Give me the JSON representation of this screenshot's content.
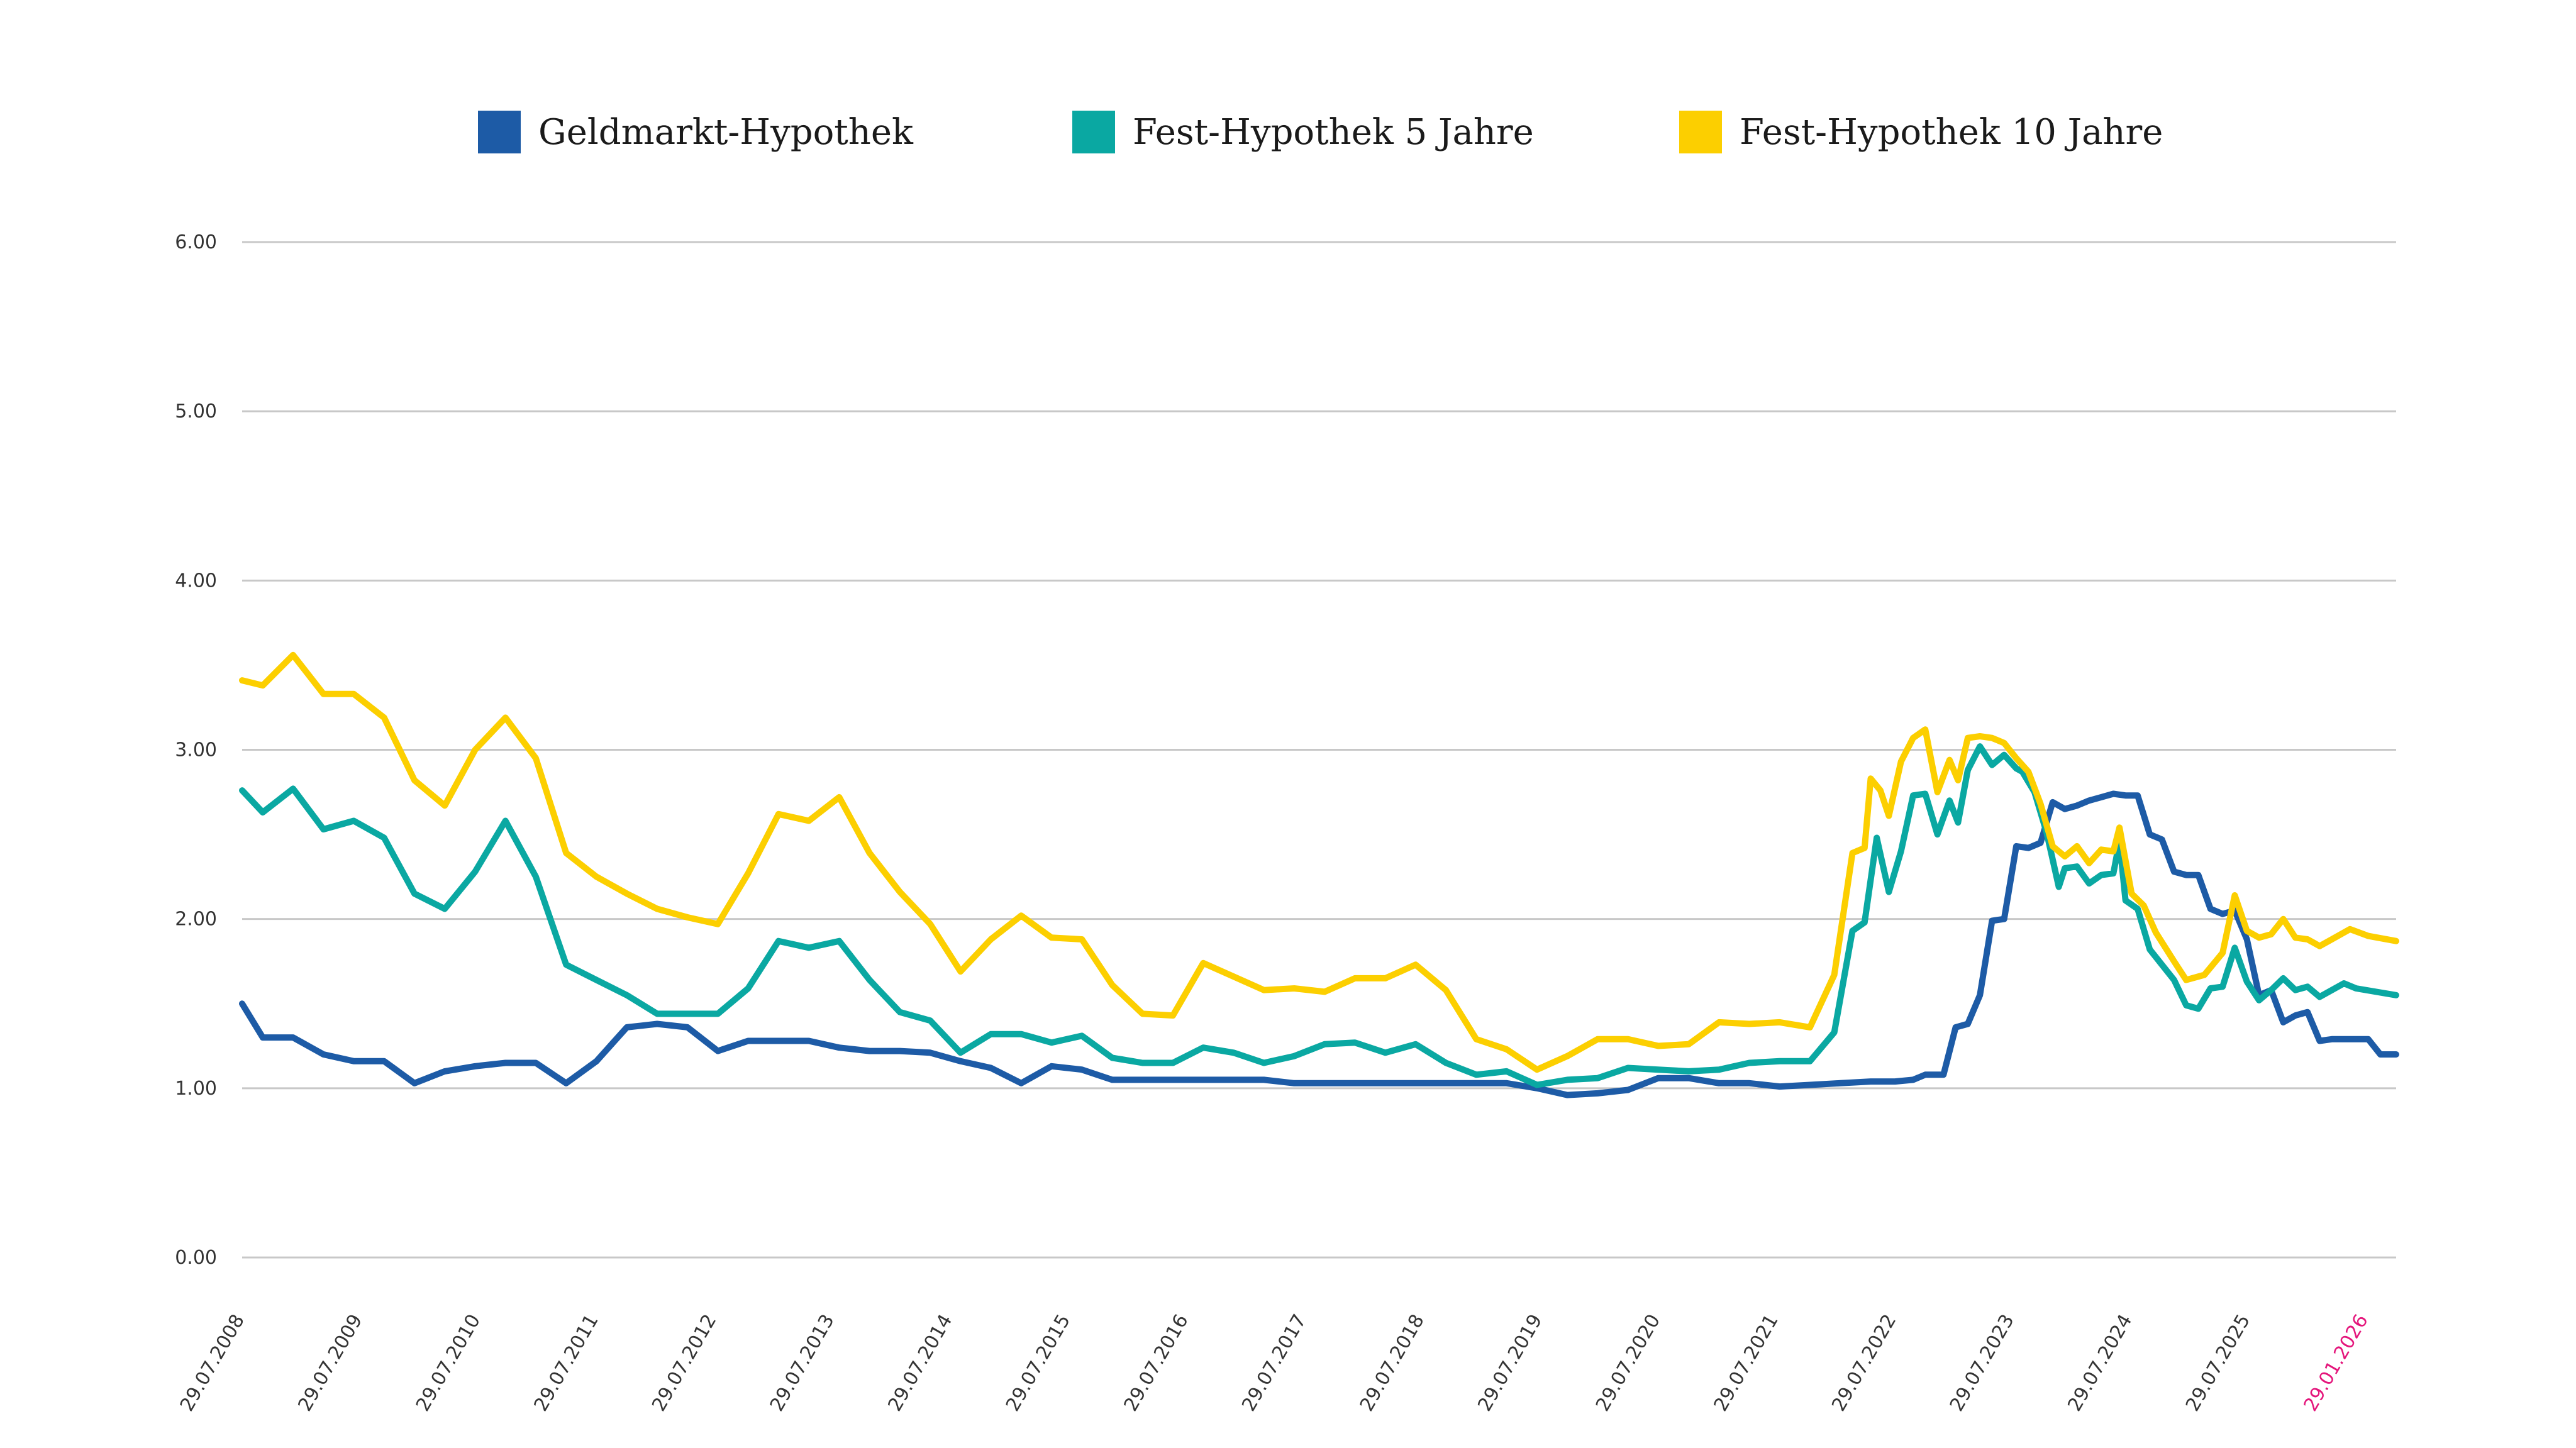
{
  "colors": {
    "geldmarkt": "#1d5ba6",
    "fest5": "#0aa8a2",
    "fest10": "#fccf00",
    "grid": "#c8c8c8",
    "axis_text": "#333333",
    "highlight_tick": "#e4157b"
  },
  "legend": {
    "items": [
      {
        "label": "Geldmarkt-Hypothek"
      },
      {
        "label": "Fest-Hypothek 5 Jahre"
      },
      {
        "label": "Fest-Hypothek 10 Jahre"
      }
    ]
  },
  "chart_data": {
    "type": "line",
    "ylim": [
      0,
      6
    ],
    "y_ticks": [
      "0.00",
      "1.00",
      "2.00",
      "3.00",
      "4.00",
      "5.00",
      "6.00"
    ],
    "x_ticks": [
      "29.07.2008",
      "29.07.2009",
      "29.07.2010",
      "29.07.2011",
      "29.07.2012",
      "29.07.2013",
      "29.07.2014",
      "29.07.2015",
      "29.07.2016",
      "29.07.2017",
      "29.07.2018",
      "29.07.2019",
      "29.07.2020",
      "29.07.2021",
      "29.07.2022",
      "29.07.2023",
      "29.07.2024",
      "29.07.2025",
      "29.01.2026"
    ],
    "highlighted_tick": "29.01.2026",
    "grid": true,
    "legend_position": "top",
    "series": [
      {
        "name": "Geldmarkt-Hypothek",
        "points": [
          [
            2008.58,
            1.5
          ],
          [
            2008.75,
            1.3
          ],
          [
            2009.0,
            1.3
          ],
          [
            2009.25,
            1.2
          ],
          [
            2009.5,
            1.16
          ],
          [
            2009.75,
            1.16
          ],
          [
            2010.0,
            1.03
          ],
          [
            2010.25,
            1.1
          ],
          [
            2010.5,
            1.13
          ],
          [
            2010.75,
            1.15
          ],
          [
            2011.0,
            1.15
          ],
          [
            2011.25,
            1.03
          ],
          [
            2011.5,
            1.16
          ],
          [
            2011.75,
            1.36
          ],
          [
            2012.0,
            1.38
          ],
          [
            2012.25,
            1.36
          ],
          [
            2012.5,
            1.22
          ],
          [
            2012.75,
            1.28
          ],
          [
            2013.0,
            1.28
          ],
          [
            2013.25,
            1.28
          ],
          [
            2013.5,
            1.24
          ],
          [
            2013.75,
            1.22
          ],
          [
            2014.0,
            1.22
          ],
          [
            2014.25,
            1.21
          ],
          [
            2014.5,
            1.16
          ],
          [
            2014.75,
            1.12
          ],
          [
            2015.0,
            1.03
          ],
          [
            2015.25,
            1.13
          ],
          [
            2015.5,
            1.11
          ],
          [
            2015.75,
            1.05
          ],
          [
            2016.0,
            1.05
          ],
          [
            2016.5,
            1.05
          ],
          [
            2017.0,
            1.05
          ],
          [
            2017.25,
            1.03
          ],
          [
            2017.5,
            1.03
          ],
          [
            2018.0,
            1.03
          ],
          [
            2018.5,
            1.03
          ],
          [
            2019.0,
            1.03
          ],
          [
            2019.25,
            1.0
          ],
          [
            2019.5,
            0.96
          ],
          [
            2019.75,
            0.97
          ],
          [
            2020.0,
            0.99
          ],
          [
            2020.25,
            1.06
          ],
          [
            2020.5,
            1.06
          ],
          [
            2020.75,
            1.03
          ],
          [
            2021.0,
            1.03
          ],
          [
            2021.25,
            1.01
          ],
          [
            2021.5,
            1.02
          ],
          [
            2021.75,
            1.03
          ],
          [
            2022.0,
            1.04
          ],
          [
            2022.2,
            1.04
          ],
          [
            2022.35,
            1.05
          ],
          [
            2022.45,
            1.08
          ],
          [
            2022.6,
            1.08
          ],
          [
            2022.7,
            1.36
          ],
          [
            2022.8,
            1.38
          ],
          [
            2022.9,
            1.55
          ],
          [
            2023.0,
            1.99
          ],
          [
            2023.1,
            2.0
          ],
          [
            2023.2,
            2.43
          ],
          [
            2023.3,
            2.42
          ],
          [
            2023.4,
            2.45
          ],
          [
            2023.5,
            2.69
          ],
          [
            2023.6,
            2.65
          ],
          [
            2023.7,
            2.67
          ],
          [
            2023.8,
            2.7
          ],
          [
            2023.9,
            2.72
          ],
          [
            2024.0,
            2.74
          ],
          [
            2024.1,
            2.73
          ],
          [
            2024.2,
            2.73
          ],
          [
            2024.3,
            2.5
          ],
          [
            2024.4,
            2.47
          ],
          [
            2024.5,
            2.28
          ],
          [
            2024.6,
            2.26
          ],
          [
            2024.7,
            2.26
          ],
          [
            2024.8,
            2.06
          ],
          [
            2024.9,
            2.03
          ],
          [
            2025.0,
            2.05
          ],
          [
            2025.1,
            1.88
          ],
          [
            2025.2,
            1.55
          ],
          [
            2025.3,
            1.58
          ],
          [
            2025.4,
            1.39
          ],
          [
            2025.5,
            1.43
          ],
          [
            2025.6,
            1.45
          ],
          [
            2025.7,
            1.28
          ],
          [
            2025.8,
            1.29
          ],
          [
            2025.9,
            1.29
          ],
          [
            2026.0,
            1.29
          ],
          [
            2026.1,
            1.29
          ],
          [
            2026.2,
            1.2
          ],
          [
            2026.33,
            1.2
          ]
        ]
      },
      {
        "name": "Fest-Hypothek 5 Jahre",
        "points": [
          [
            2008.58,
            2.76
          ],
          [
            2008.75,
            2.63
          ],
          [
            2009.0,
            2.77
          ],
          [
            2009.25,
            2.53
          ],
          [
            2009.5,
            2.58
          ],
          [
            2009.75,
            2.48
          ],
          [
            2010.0,
            2.15
          ],
          [
            2010.25,
            2.06
          ],
          [
            2010.5,
            2.28
          ],
          [
            2010.75,
            2.58
          ],
          [
            2011.0,
            2.25
          ],
          [
            2011.25,
            1.73
          ],
          [
            2011.5,
            1.64
          ],
          [
            2011.75,
            1.55
          ],
          [
            2012.0,
            1.44
          ],
          [
            2012.25,
            1.44
          ],
          [
            2012.5,
            1.44
          ],
          [
            2012.75,
            1.59
          ],
          [
            2013.0,
            1.87
          ],
          [
            2013.25,
            1.83
          ],
          [
            2013.5,
            1.87
          ],
          [
            2013.75,
            1.64
          ],
          [
            2014.0,
            1.45
          ],
          [
            2014.25,
            1.4
          ],
          [
            2014.5,
            1.21
          ],
          [
            2014.75,
            1.32
          ],
          [
            2015.0,
            1.32
          ],
          [
            2015.25,
            1.27
          ],
          [
            2015.5,
            1.31
          ],
          [
            2015.75,
            1.18
          ],
          [
            2016.0,
            1.15
          ],
          [
            2016.25,
            1.15
          ],
          [
            2016.5,
            1.24
          ],
          [
            2016.75,
            1.21
          ],
          [
            2017.0,
            1.15
          ],
          [
            2017.25,
            1.19
          ],
          [
            2017.5,
            1.26
          ],
          [
            2017.75,
            1.27
          ],
          [
            2018.0,
            1.21
          ],
          [
            2018.25,
            1.26
          ],
          [
            2018.5,
            1.15
          ],
          [
            2018.75,
            1.08
          ],
          [
            2019.0,
            1.1
          ],
          [
            2019.25,
            1.02
          ],
          [
            2019.5,
            1.05
          ],
          [
            2019.75,
            1.06
          ],
          [
            2020.0,
            1.12
          ],
          [
            2020.25,
            1.11
          ],
          [
            2020.5,
            1.1
          ],
          [
            2020.75,
            1.11
          ],
          [
            2021.0,
            1.15
          ],
          [
            2021.25,
            1.16
          ],
          [
            2021.5,
            1.16
          ],
          [
            2021.7,
            1.33
          ],
          [
            2021.85,
            1.93
          ],
          [
            2021.95,
            1.98
          ],
          [
            2022.05,
            2.48
          ],
          [
            2022.15,
            2.16
          ],
          [
            2022.25,
            2.4
          ],
          [
            2022.35,
            2.73
          ],
          [
            2022.45,
            2.74
          ],
          [
            2022.55,
            2.5
          ],
          [
            2022.65,
            2.7
          ],
          [
            2022.72,
            2.57
          ],
          [
            2022.8,
            2.88
          ],
          [
            2022.9,
            3.02
          ],
          [
            2023.0,
            2.91
          ],
          [
            2023.1,
            2.97
          ],
          [
            2023.2,
            2.89
          ],
          [
            2023.25,
            2.87
          ],
          [
            2023.35,
            2.75
          ],
          [
            2023.45,
            2.51
          ],
          [
            2023.55,
            2.19
          ],
          [
            2023.6,
            2.3
          ],
          [
            2023.7,
            2.31
          ],
          [
            2023.8,
            2.21
          ],
          [
            2023.9,
            2.26
          ],
          [
            2024.0,
            2.27
          ],
          [
            2024.05,
            2.46
          ],
          [
            2024.1,
            2.11
          ],
          [
            2024.2,
            2.06
          ],
          [
            2024.3,
            1.82
          ],
          [
            2024.5,
            1.64
          ],
          [
            2024.6,
            1.49
          ],
          [
            2024.7,
            1.47
          ],
          [
            2024.8,
            1.59
          ],
          [
            2024.9,
            1.6
          ],
          [
            2025.0,
            1.83
          ],
          [
            2025.1,
            1.63
          ],
          [
            2025.2,
            1.52
          ],
          [
            2025.3,
            1.58
          ],
          [
            2025.4,
            1.65
          ],
          [
            2025.5,
            1.58
          ],
          [
            2025.6,
            1.6
          ],
          [
            2025.7,
            1.54
          ],
          [
            2025.8,
            1.58
          ],
          [
            2025.9,
            1.62
          ],
          [
            2026.0,
            1.59
          ],
          [
            2026.33,
            1.55
          ]
        ]
      },
      {
        "name": "Fest-Hypothek 10 Jahre",
        "points": [
          [
            2008.58,
            3.41
          ],
          [
            2008.75,
            3.38
          ],
          [
            2009.0,
            3.56
          ],
          [
            2009.25,
            3.33
          ],
          [
            2009.5,
            3.33
          ],
          [
            2009.75,
            3.19
          ],
          [
            2010.0,
            2.82
          ],
          [
            2010.25,
            2.67
          ],
          [
            2010.5,
            3.0
          ],
          [
            2010.75,
            3.19
          ],
          [
            2011.0,
            2.95
          ],
          [
            2011.25,
            2.39
          ],
          [
            2011.5,
            2.25
          ],
          [
            2011.75,
            2.15
          ],
          [
            2012.0,
            2.06
          ],
          [
            2012.25,
            2.01
          ],
          [
            2012.5,
            1.97
          ],
          [
            2012.75,
            2.27
          ],
          [
            2013.0,
            2.62
          ],
          [
            2013.25,
            2.58
          ],
          [
            2013.5,
            2.72
          ],
          [
            2013.75,
            2.39
          ],
          [
            2014.0,
            2.16
          ],
          [
            2014.25,
            1.97
          ],
          [
            2014.5,
            1.69
          ],
          [
            2014.75,
            1.88
          ],
          [
            2015.0,
            2.02
          ],
          [
            2015.25,
            1.89
          ],
          [
            2015.5,
            1.88
          ],
          [
            2015.75,
            1.61
          ],
          [
            2016.0,
            1.44
          ],
          [
            2016.25,
            1.43
          ],
          [
            2016.5,
            1.74
          ],
          [
            2016.75,
            1.66
          ],
          [
            2017.0,
            1.58
          ],
          [
            2017.25,
            1.59
          ],
          [
            2017.5,
            1.57
          ],
          [
            2017.75,
            1.65
          ],
          [
            2018.0,
            1.65
          ],
          [
            2018.25,
            1.73
          ],
          [
            2018.5,
            1.58
          ],
          [
            2018.75,
            1.29
          ],
          [
            2019.0,
            1.23
          ],
          [
            2019.25,
            1.11
          ],
          [
            2019.5,
            1.19
          ],
          [
            2019.75,
            1.29
          ],
          [
            2020.0,
            1.29
          ],
          [
            2020.25,
            1.25
          ],
          [
            2020.5,
            1.26
          ],
          [
            2020.75,
            1.39
          ],
          [
            2021.0,
            1.38
          ],
          [
            2021.25,
            1.39
          ],
          [
            2021.5,
            1.36
          ],
          [
            2021.7,
            1.67
          ],
          [
            2021.85,
            2.39
          ],
          [
            2021.95,
            2.42
          ],
          [
            2022.0,
            2.83
          ],
          [
            2022.08,
            2.76
          ],
          [
            2022.15,
            2.61
          ],
          [
            2022.25,
            2.93
          ],
          [
            2022.35,
            3.07
          ],
          [
            2022.45,
            3.12
          ],
          [
            2022.55,
            2.75
          ],
          [
            2022.65,
            2.94
          ],
          [
            2022.72,
            2.82
          ],
          [
            2022.8,
            3.07
          ],
          [
            2022.9,
            3.08
          ],
          [
            2023.0,
            3.07
          ],
          [
            2023.1,
            3.04
          ],
          [
            2023.2,
            2.95
          ],
          [
            2023.3,
            2.87
          ],
          [
            2023.4,
            2.68
          ],
          [
            2023.5,
            2.43
          ],
          [
            2023.6,
            2.37
          ],
          [
            2023.7,
            2.43
          ],
          [
            2023.8,
            2.33
          ],
          [
            2023.9,
            2.41
          ],
          [
            2024.0,
            2.4
          ],
          [
            2024.05,
            2.54
          ],
          [
            2024.15,
            2.15
          ],
          [
            2024.25,
            2.08
          ],
          [
            2024.35,
            1.92
          ],
          [
            2024.5,
            1.75
          ],
          [
            2024.6,
            1.64
          ],
          [
            2024.75,
            1.67
          ],
          [
            2024.9,
            1.8
          ],
          [
            2025.0,
            2.14
          ],
          [
            2025.1,
            1.93
          ],
          [
            2025.2,
            1.89
          ],
          [
            2025.3,
            1.91
          ],
          [
            2025.4,
            2.0
          ],
          [
            2025.5,
            1.89
          ],
          [
            2025.6,
            1.88
          ],
          [
            2025.7,
            1.84
          ],
          [
            2025.8,
            1.88
          ],
          [
            2025.95,
            1.94
          ],
          [
            2026.1,
            1.9
          ],
          [
            2026.33,
            1.87
          ]
        ]
      }
    ]
  }
}
